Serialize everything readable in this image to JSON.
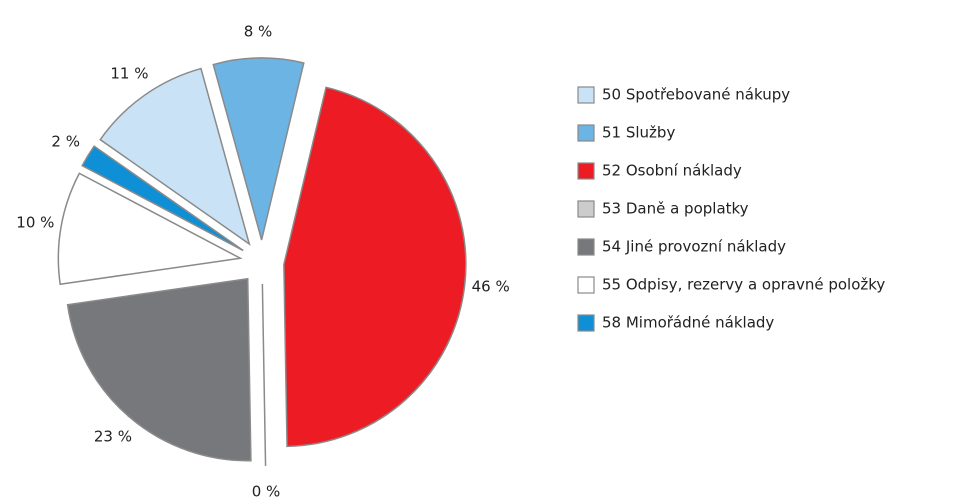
{
  "chart_data": {
    "type": "pie",
    "categories": [
      "50 Spotřebované nákupy",
      "51 Služby",
      "52 Osobní náklady",
      "53 Daně a poplatky",
      "54 Jiné provozní náklady",
      "55 Odpisy, rezervy a opravné položky",
      "58 Mimořádné náklady"
    ],
    "values": [
      11,
      8,
      46,
      0,
      23,
      10,
      2
    ],
    "value_labels": [
      "11 %",
      "8 %",
      "46 %",
      "0 %",
      "23 %",
      "10 %",
      "2 %"
    ],
    "colors": [
      "#c9e2f5",
      "#6cb4e4",
      "#ed1c24",
      "#cccccc",
      "#77787b",
      "#ffffff",
      "#0f8fd6"
    ],
    "legend": "right"
  }
}
